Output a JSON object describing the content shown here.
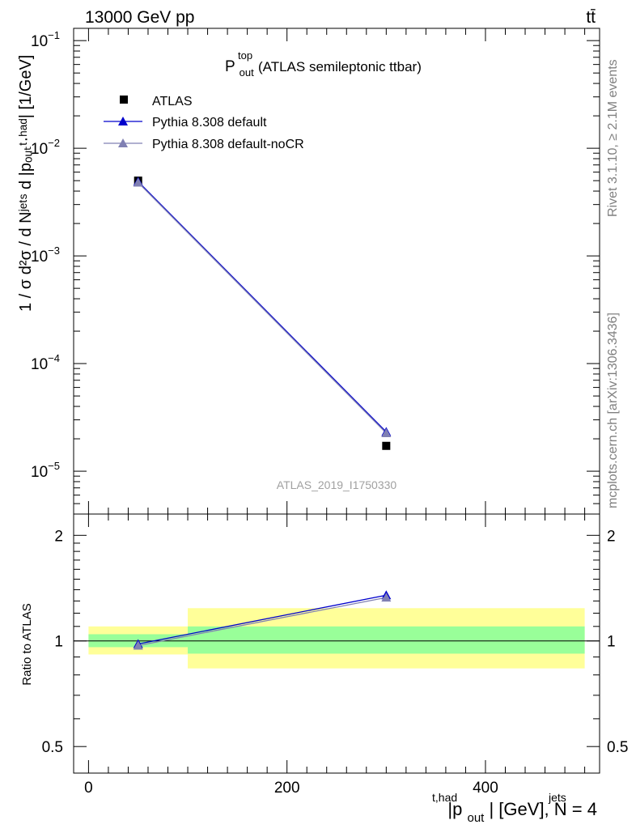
{
  "header": {
    "energy_label": "13000 GeV pp",
    "process_label": "tt̄"
  },
  "side_labels": {
    "rivet": "Rivet 3.1.10, ≥ 2.1M events",
    "mcplots": "mcplots.cern.ch [arXiv:1306.3436]"
  },
  "chart_data": [
    {
      "type": "line",
      "title_main": "P",
      "title_sup": "top",
      "title_sub": "out",
      "title_rest": " (ATLAS semileptonic ttbar)",
      "watermark": "ATLAS_2019_I1750330",
      "yscale": "log",
      "ylim": [
        4e-06,
        0.13
      ],
      "xlim": [
        -15,
        515
      ],
      "ylabel": "1 / σ d²σ / d Nʲᵉᵗˢ d |pₒᵤₜᵗ·ʰᵃᵈ| [1/GeV]",
      "yticks": [
        {
          "value": 1e-05,
          "base": "10",
          "exp": "−5"
        },
        {
          "value": 0.0001,
          "base": "10",
          "exp": "−4"
        },
        {
          "value": 0.001,
          "base": "10",
          "exp": "−3"
        },
        {
          "value": 0.01,
          "base": "10",
          "exp": "−2"
        },
        {
          "value": 0.1,
          "base": "10",
          "exp": "−1"
        }
      ],
      "legend_position": "top-left",
      "series": [
        {
          "name": "ATLAS",
          "marker": "square",
          "color": "#000000",
          "x": [
            50,
            300
          ],
          "y": [
            0.005,
            1.72e-05
          ]
        },
        {
          "name": "Pythia 8.308 default",
          "marker": "triangle",
          "color": "#0000cc",
          "x": [
            50,
            300
          ],
          "y": [
            0.0049,
            2.32e-05
          ]
        },
        {
          "name": "Pythia 8.308 default-noCR",
          "marker": "triangle",
          "color": "#8080b3",
          "x": [
            50,
            300
          ],
          "y": [
            0.0048,
            2.26e-05
          ]
        }
      ]
    },
    {
      "type": "line",
      "ylabel": "Ratio to ATLAS",
      "xlabel_main": "|p",
      "xlabel_sup": "t,had",
      "xlabel_sub": "out",
      "xlabel_rest": "| [GeV], N",
      "xlabel_sup2": "jets",
      "xlabel_end": " = 4",
      "xlim": [
        -15,
        515
      ],
      "ylim": [
        0.42,
        2.3
      ],
      "yscale": "log",
      "xticks": [
        {
          "value": 0,
          "label": "0"
        },
        {
          "value": 200,
          "label": "200"
        },
        {
          "value": 400,
          "label": "400"
        }
      ],
      "yticks": [
        {
          "value": 0.5,
          "label": "0.5"
        },
        {
          "value": 1,
          "label": "1"
        },
        {
          "value": 2,
          "label": "2"
        }
      ],
      "bands": [
        {
          "xmin": 0,
          "xmax": 100,
          "stat": [
            0.96,
            1.045
          ],
          "total": [
            0.915,
            1.1
          ]
        },
        {
          "xmin": 100,
          "xmax": 500,
          "stat": [
            0.92,
            1.1
          ],
          "total": [
            0.835,
            1.24
          ]
        }
      ],
      "band_colors": {
        "stat": "#99ff99",
        "total": "#ffff99"
      },
      "series": [
        {
          "name": "Pythia 8.308 default",
          "marker": "triangle",
          "color": "#0000cc",
          "x": [
            50,
            300
          ],
          "y": [
            0.98,
            1.35
          ]
        },
        {
          "name": "Pythia 8.308 default-noCR",
          "marker": "triangle",
          "color": "#8080b3",
          "x": [
            50,
            300
          ],
          "y": [
            0.97,
            1.33
          ]
        }
      ]
    }
  ]
}
